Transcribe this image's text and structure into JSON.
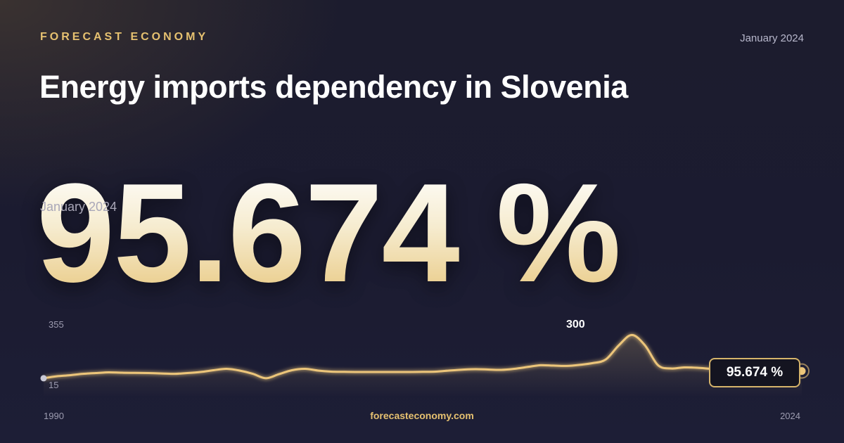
{
  "brand": "FORECAST ECONOMY",
  "date": "January 2024",
  "title": "Energy imports dependency in Slovenia",
  "headline_value": "95.674 %",
  "headline_date": "January 2024",
  "footer": "forecasteconomy.com",
  "colors": {
    "accent": "#e6c170",
    "line": "#ecc57a",
    "background": "#1c1c2e",
    "min_marker": "#c9c9d6"
  },
  "chart_data": {
    "type": "area",
    "x_start": "1990",
    "x_end": "2024",
    "ylim": [
      15,
      355
    ],
    "y_tick_labels": [
      "355",
      "15"
    ],
    "peak_label": "300",
    "last_value_label": "95.674 %",
    "series": [
      {
        "values": [
          55,
          66,
          72,
          80,
          84,
          88,
          86,
          85,
          84,
          82,
          80,
          84,
          90,
          100,
          108,
          98,
          80,
          55,
          78,
          100,
          108,
          98,
          92,
          91,
          90,
          90,
          90,
          90,
          90,
          91,
          92,
          98,
          103,
          106,
          104,
          102,
          108,
          118,
          128,
          126,
          124,
          130,
          140,
          160,
          240,
          298,
          240,
          128,
          110,
          116,
          114,
          108,
          100,
          94,
          96,
          98,
          100,
          102,
          95.674
        ]
      }
    ]
  }
}
